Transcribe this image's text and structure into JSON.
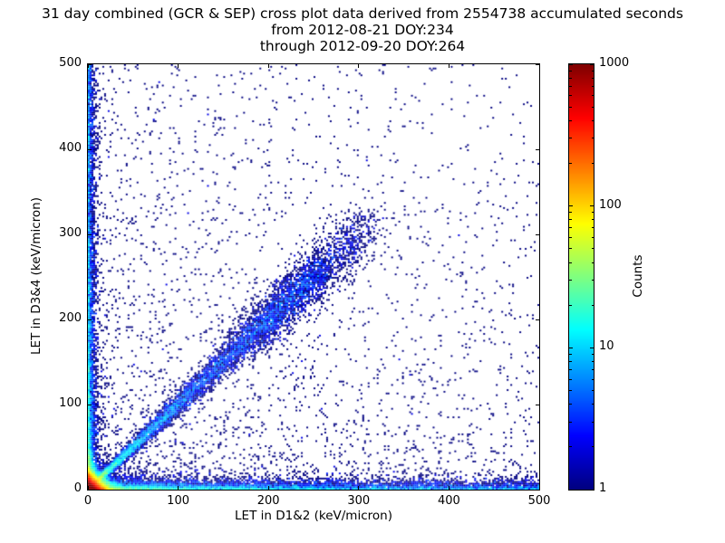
{
  "chart_data": {
    "type": "heatmap",
    "subtype": "2D histogram cross plot of particle events, log-scaled counts, jet colormap",
    "title_lines": [
      "31 day combined (GCR & SEP) cross plot data derived from 2554738 accumulated seconds",
      "from 2012-08-21 DOY:234",
      "through 2012-09-20 DOY:264"
    ],
    "xlabel": "LET in D1&2 (keV/micron)",
    "ylabel": "LET in D3&4 (keV/micron)",
    "xlim": [
      0,
      500
    ],
    "ylim": [
      0,
      500
    ],
    "xticks": [
      0,
      100,
      200,
      300,
      400,
      500
    ],
    "yticks": [
      0,
      100,
      200,
      300,
      400,
      500
    ],
    "accumulated_seconds": 2554738,
    "start_date": "2012-08-21",
    "start_doy": 234,
    "end_date": "2012-09-20",
    "end_doy": 264,
    "grid": false,
    "colorbar": {
      "label": "Counts",
      "scale": "log",
      "min": 1,
      "max": 1000,
      "ticks": [
        1,
        10,
        100,
        1000
      ],
      "colormap": "jet",
      "position": "right"
    },
    "bins": {
      "size_kev_per_micron": 2,
      "range": [
        0,
        500
      ]
    },
    "seed": 20120821,
    "features": [
      {
        "name": "origin-peak",
        "description": "Very dense core at the origin; counts reach the colorbar maximum (~1000, dark red) in the lowest-LET bins, fading through orange/yellow/green/cyan to blue by ~20-40 keV/micron",
        "type": "exp2d",
        "n": 32000,
        "scale_x": 5,
        "scale_y": 5
      },
      {
        "name": "coincident-diagonal",
        "description": "Enhanced band along y=x (equal LET in both detector pairs) out to ~260 keV/micron; cyan/green near the origin thinning to single dark-blue counts",
        "type": "diagonal",
        "n": 7000,
        "t_min": 0,
        "t_max": 260,
        "power": 1.6,
        "jitter0": 1.5,
        "jitter_slope": 0.035
      },
      {
        "name": "diagonal-cloud",
        "description": "Diffuse cloud of mostly single-count events straddling the diagonal between ~170 and ~310 keV/micron",
        "type": "diagonal",
        "n": 1700,
        "t_min": 170,
        "t_max": 310,
        "power": 1.0,
        "jitter0": 14,
        "jitter_slope": 0
      },
      {
        "name": "x-axis-band",
        "description": "Events with high D1&2 LET but near-zero D3&4 LET hugging the x axis out to 500 keV/micron, dense (green/cyan) near the origin",
        "type": "axis-x",
        "n": 9000,
        "len": 500,
        "power": 2.2,
        "scale": 4
      },
      {
        "name": "y-axis-band",
        "description": "Events with high D3&4 LET but near-zero D1&2 LET hugging the y axis up to 500 keV/micron",
        "type": "axis-y",
        "n": 6500,
        "len": 500,
        "power": 2.4,
        "scale": 3
      },
      {
        "name": "background-scatter",
        "description": "Sparse isolated single-count (dark blue) events over the whole plane, thinning toward the upper right",
        "type": "background",
        "n": 3200,
        "power_x": 1.6,
        "power_y": 1.9
      }
    ]
  },
  "colors": {
    "background": "#ffffff",
    "axes": "#000000",
    "text": "#000000",
    "count_1": "#00007f",
    "count_1000": "#7f0000"
  }
}
